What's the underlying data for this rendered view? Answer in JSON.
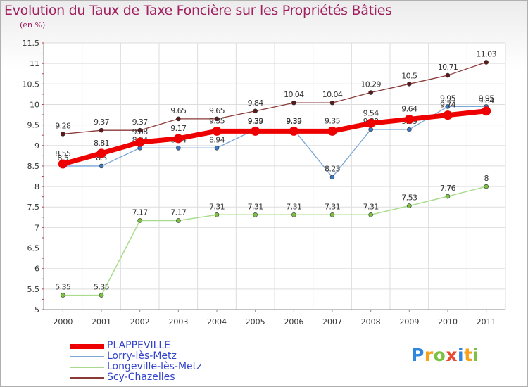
{
  "title": "Evolution du Taux de Taxe Foncière sur les Propriétés Bâties",
  "subtitle": "(en %)",
  "logo": {
    "letters": [
      "P",
      "r",
      "o",
      "x",
      "i",
      "t",
      "i"
    ],
    "colors": [
      "#2e86de",
      "#f7a21b",
      "#7dc142",
      "#e8482e",
      "#2e86de",
      "#f7a21b",
      "#7dc142"
    ]
  },
  "chart_data": {
    "type": "line",
    "title": "Evolution du Taux de Taxe Foncière sur les Propriétés Bâties",
    "ylabel": "(en %)",
    "xlabel": "",
    "categories": [
      "2000",
      "2001",
      "2002",
      "2003",
      "2004",
      "2005",
      "2006",
      "2007",
      "2008",
      "2009",
      "2010",
      "2011"
    ],
    "ylim": [
      5,
      11.5
    ],
    "yticks": [
      "5",
      "5.5",
      "6",
      "6.5",
      "7",
      "7.5",
      "8",
      "8.5",
      "9",
      "9.5",
      "10",
      "10.5",
      "11",
      "11.5"
    ],
    "grid": true,
    "legend_position": "bottom-left",
    "series": [
      {
        "name": "Scy-Chazelles",
        "color": "#8b3a3a",
        "marker": "#5a1a1a",
        "width": 1.3,
        "values": [
          9.28,
          9.37,
          9.37,
          9.65,
          9.65,
          9.84,
          10.04,
          10.04,
          10.29,
          10.5,
          10.71,
          11.03
        ],
        "labels": [
          "9.28",
          "9.37",
          "9.37",
          "9.65",
          "9.65",
          "9.84",
          "10.04",
          "10.04",
          "10.29",
          "10.5",
          "10.71",
          "11.03"
        ]
      },
      {
        "name": "Longeville-lès-Metz",
        "color": "#a8dc8c",
        "marker": "#7cc142",
        "width": 1.5,
        "values": [
          5.35,
          5.35,
          7.17,
          7.17,
          7.31,
          7.31,
          7.31,
          7.31,
          7.31,
          7.53,
          7.76,
          8
        ],
        "labels": [
          "5.35",
          "5.35",
          "7.17",
          "7.17",
          "7.31",
          "7.31",
          "7.31",
          "7.31",
          "7.31",
          "7.53",
          "7.76",
          "8"
        ]
      },
      {
        "name": "Lorry-lès-Metz",
        "color": "#7ba6d6",
        "marker": "#3a78c2",
        "width": 1.3,
        "values": [
          8.5,
          8.5,
          8.94,
          8.94,
          8.94,
          9.39,
          9.39,
          8.23,
          9.39,
          9.39,
          9.95,
          9.95
        ],
        "labels": [
          "8.5",
          "8.5",
          "8.94",
          "8.94",
          "8.94",
          "9.39",
          "9.39",
          "8.23",
          "9.39",
          "9.39",
          "9.95",
          "9.95"
        ]
      },
      {
        "name": "PLAPPEVILLE",
        "color": "#ee0000",
        "marker": "#ee0000",
        "width": 7,
        "values": [
          8.55,
          8.81,
          9.08,
          9.17,
          9.35,
          9.35,
          9.35,
          9.35,
          9.54,
          9.64,
          9.74,
          9.84
        ],
        "labels": [
          "8.55",
          "8.81",
          "9.08",
          "9.17",
          "9.35",
          "9.35",
          "9.35",
          "9.35",
          "9.54",
          "9.64",
          "9.74",
          "9.84"
        ]
      }
    ],
    "legend_order": [
      "PLAPPEVILLE",
      "Lorry-lès-Metz",
      "Longeville-lès-Metz",
      "Scy-Chazelles"
    ]
  }
}
